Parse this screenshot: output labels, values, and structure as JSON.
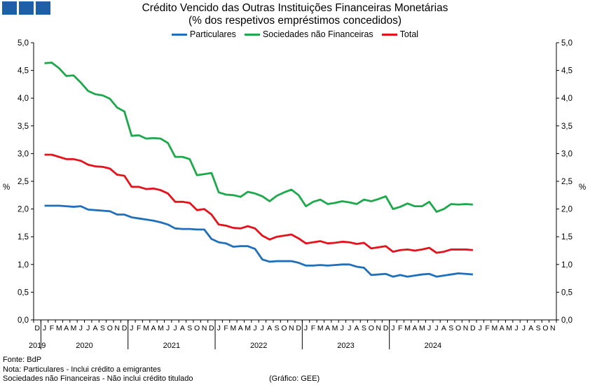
{
  "brand": {
    "color": "#1f5fa8"
  },
  "chart_data": {
    "type": "line",
    "title": "Crédito Vencido das Outras Instituições Financeiras Monetárias",
    "subtitle": "(% dos respetivos empréstimos concedidos)",
    "ylabel_left": "%",
    "ylabel_right": "%",
    "ylim": [
      0,
      5
    ],
    "yticks": [
      "0,0",
      "0,5",
      "1,0",
      "1,5",
      "2,0",
      "2,5",
      "3,0",
      "3,5",
      "4,0",
      "4,5",
      "5,0"
    ],
    "grid": false,
    "legend_position": "top-center",
    "month_labels": [
      "D",
      "J",
      "F",
      "M",
      "A",
      "M",
      "J",
      "J",
      "A",
      "S",
      "O",
      "N",
      "D",
      "J",
      "F",
      "M",
      "A",
      "M",
      "J",
      "J",
      "A",
      "S",
      "O",
      "N",
      "D",
      "J",
      "F",
      "M",
      "A",
      "M",
      "J",
      "J",
      "A",
      "S",
      "O",
      "N",
      "D",
      "J",
      "F",
      "M",
      "A",
      "M",
      "J",
      "J",
      "A",
      "S",
      "O",
      "N",
      "D",
      "J",
      "F",
      "M",
      "A",
      "M",
      "J",
      "J",
      "A",
      "S",
      "O",
      "N",
      "D",
      "J",
      "F",
      "M",
      "A",
      "M",
      "J",
      "J",
      "A",
      "S",
      "O",
      "N"
    ],
    "year_labels": [
      "2019",
      "2020",
      "2021",
      "2022",
      "2023",
      "2024"
    ],
    "series": [
      {
        "name": "Particulares",
        "color": "#1f6fba",
        "values": [
          2.06,
          2.06,
          2.06,
          2.05,
          2.04,
          2.05,
          1.99,
          1.98,
          1.97,
          1.96,
          1.9,
          1.9,
          1.85,
          1.83,
          1.81,
          1.79,
          1.76,
          1.72,
          1.65,
          1.64,
          1.64,
          1.63,
          1.63,
          1.46,
          1.4,
          1.38,
          1.32,
          1.33,
          1.33,
          1.28,
          1.09,
          1.05,
          1.06,
          1.06,
          1.06,
          1.03,
          0.98,
          0.98,
          0.99,
          0.98,
          0.99,
          1.0,
          1.0,
          0.96,
          0.94,
          0.81,
          0.82,
          0.83,
          0.78,
          0.81,
          0.78,
          0.8,
          0.82,
          0.83,
          0.78,
          0.8,
          0.82,
          0.84,
          0.83,
          0.82
        ]
      },
      {
        "name": "Sociedades não Financeiras",
        "color": "#1da84b",
        "values": [
          4.63,
          4.64,
          4.54,
          4.4,
          4.41,
          4.28,
          4.13,
          4.07,
          4.05,
          3.99,
          3.83,
          3.76,
          3.32,
          3.33,
          3.27,
          3.28,
          3.27,
          3.19,
          2.94,
          2.94,
          2.9,
          2.61,
          2.63,
          2.65,
          2.3,
          2.26,
          2.25,
          2.22,
          2.31,
          2.28,
          2.23,
          2.14,
          2.24,
          2.3,
          2.35,
          2.25,
          2.05,
          2.13,
          2.17,
          2.09,
          2.11,
          2.14,
          2.12,
          2.09,
          2.17,
          2.14,
          2.18,
          2.23,
          2.0,
          2.04,
          2.1,
          2.05,
          2.05,
          2.13,
          1.95,
          2.0,
          2.09,
          2.08,
          2.09,
          2.08
        ]
      },
      {
        "name": "Total",
        "color": "#e3121b",
        "values": [
          2.98,
          2.98,
          2.94,
          2.9,
          2.9,
          2.87,
          2.8,
          2.77,
          2.76,
          2.73,
          2.62,
          2.6,
          2.4,
          2.4,
          2.36,
          2.37,
          2.34,
          2.28,
          2.13,
          2.13,
          2.11,
          1.98,
          2.0,
          1.9,
          1.72,
          1.7,
          1.66,
          1.65,
          1.69,
          1.65,
          1.52,
          1.45,
          1.5,
          1.52,
          1.54,
          1.47,
          1.38,
          1.4,
          1.42,
          1.38,
          1.39,
          1.41,
          1.4,
          1.37,
          1.39,
          1.29,
          1.31,
          1.33,
          1.23,
          1.26,
          1.27,
          1.25,
          1.27,
          1.3,
          1.21,
          1.23,
          1.27,
          1.27,
          1.27,
          1.26
        ]
      }
    ]
  },
  "footer": {
    "source": "Fonte: BdP",
    "note1": "Nota: Particulares - Inclui crédito a emigrantes",
    "note2": "Sociedades não Financeiras - Não inclui crédito titulado",
    "credit": "(Gráfico: GEE)"
  }
}
